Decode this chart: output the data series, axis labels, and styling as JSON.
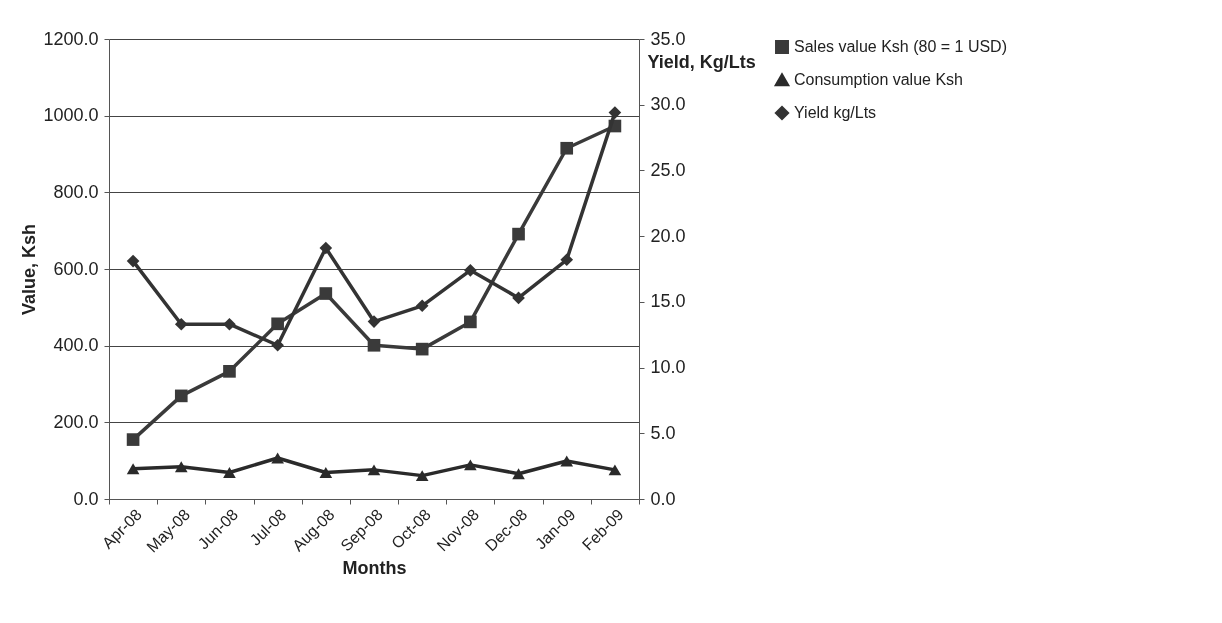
{
  "chart_data": {
    "type": "line",
    "xlabel": "Months",
    "ylabel": "Value, Ksh",
    "y2label": "Yield, Kg/Lts",
    "categories": [
      "Apr-08",
      "May-08",
      "Jun-08",
      "Jul-08",
      "Aug-08",
      "Sep-08",
      "Oct-08",
      "Nov-08",
      "Dec-08",
      "Jan-09",
      "Feb-09"
    ],
    "series": [
      {
        "name": "Sales value Ksh (80 = 1 USD)",
        "color": "#3a3a3a",
        "marker": "square",
        "values": [
          155,
          269,
          333,
          457,
          536,
          401,
          391,
          462,
          691,
          915,
          973
        ]
      },
      {
        "name": "Consumption value Ksh",
        "color": "#2a2a2a",
        "marker": "triangle",
        "values": [
          79,
          84,
          69,
          107,
          69,
          76,
          61,
          89,
          66,
          99,
          76
        ]
      },
      {
        "name": "Yield kg/Lts",
        "color": "#333333",
        "marker": "diamond",
        "axis": "y2",
        "values": [
          18.1,
          13.3,
          13.3,
          11.7,
          19.1,
          13.5,
          14.7,
          17.4,
          15.3,
          18.2,
          29.4
        ]
      }
    ],
    "ylim": [
      0,
      1200
    ],
    "yticks": [
      {
        "value": 0,
        "label": "0.0"
      },
      {
        "value": 200,
        "label": "200.0"
      },
      {
        "value": 400,
        "label": "400.0"
      },
      {
        "value": 600,
        "label": "600.0"
      },
      {
        "value": 800,
        "label": "800.0"
      },
      {
        "value": 1000,
        "label": "1000.0"
      },
      {
        "value": 1200,
        "label": "1200.0"
      }
    ],
    "y2lim": [
      0,
      35
    ],
    "y2ticks": [
      {
        "value": 0,
        "label": "0.0"
      },
      {
        "value": 5,
        "label": "5.0"
      },
      {
        "value": 10,
        "label": "10.0"
      },
      {
        "value": 15,
        "label": "15.0"
      },
      {
        "value": 20,
        "label": "20.0"
      },
      {
        "value": 25,
        "label": "25.0"
      },
      {
        "value": 30,
        "label": "30.0"
      },
      {
        "value": 35,
        "label": "35.0"
      }
    ],
    "grid": "y",
    "legend": "right",
    "line_style": "solid"
  }
}
